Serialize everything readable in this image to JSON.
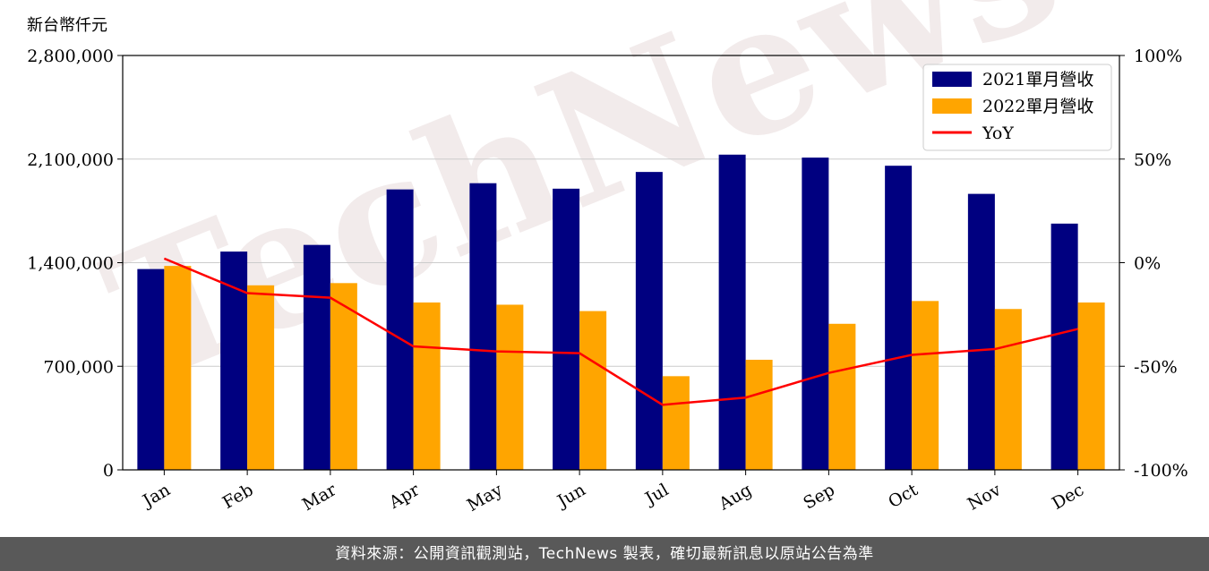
{
  "watermark": "TechNews",
  "footer": "資料來源：公開資訊觀測站，TechNews 製表，確切最新訊息以原站公告為準",
  "chart_data": {
    "type": "bar",
    "title": "",
    "unit_label": "新台幣仟元",
    "categories": [
      "Jan",
      "Feb",
      "Mar",
      "Apr",
      "May",
      "Jun",
      "Jul",
      "Aug",
      "Sep",
      "Oct",
      "Nov",
      "Dec"
    ],
    "series": [
      {
        "name": "2021單月營收",
        "type": "bar",
        "color": "#000080",
        "values": [
          1357000,
          1475000,
          1520000,
          1895000,
          1937000,
          1900000,
          2013000,
          2130000,
          2110000,
          2055000,
          1865000,
          1664000
        ]
      },
      {
        "name": "2022單月營收",
        "type": "bar",
        "color": "#ffa500",
        "values": [
          1378000,
          1247000,
          1262000,
          1131000,
          1116000,
          1073000,
          633000,
          744000,
          987000,
          1141000,
          1087000,
          1131000
        ]
      },
      {
        "name": "YoY",
        "type": "line",
        "axis": "right",
        "color": "#ff0000",
        "values": [
          2,
          -14.7,
          -16.9,
          -40.4,
          -42.8,
          -43.7,
          -68.6,
          -65.1,
          -53.2,
          -44.5,
          -41.7,
          -32
        ]
      }
    ],
    "y_left": {
      "min": 0,
      "max": 2800000,
      "ticks": [
        0,
        700000,
        1400000,
        2100000,
        2800000
      ],
      "tick_labels": [
        "0",
        "700,000",
        "1,400,000",
        "2,100,000",
        "2,800,000"
      ]
    },
    "y_right": {
      "min": -100,
      "max": 100,
      "ticks": [
        -100,
        -50,
        0,
        50,
        100
      ],
      "tick_labels": [
        "-100%",
        "-50%",
        "0%",
        "50%",
        "100%"
      ]
    },
    "grid": true,
    "legend": "top-right"
  }
}
